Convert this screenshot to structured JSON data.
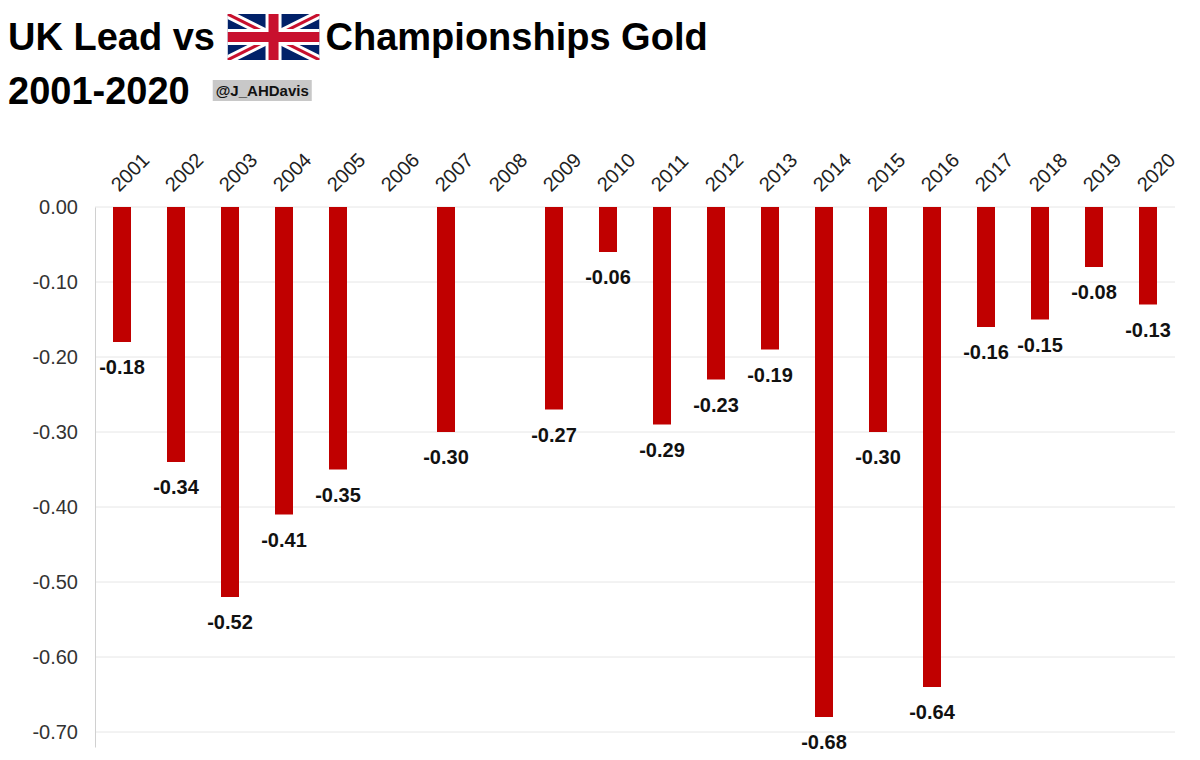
{
  "chart_data": {
    "type": "bar",
    "title": "UK Lead vs Championships Gold",
    "subtitle": "2001-2020",
    "annotation": "@J_AHDavis",
    "categories": [
      "2001",
      "2002",
      "2003",
      "2004",
      "2005",
      "2006",
      "2007",
      "2008",
      "2009",
      "2010",
      "2011",
      "2012",
      "2013",
      "2014",
      "2015",
      "2016",
      "2017",
      "2018",
      "2019",
      "2020"
    ],
    "values": [
      -0.18,
      -0.34,
      -0.52,
      -0.41,
      -0.35,
      null,
      -0.3,
      null,
      -0.27,
      -0.06,
      -0.29,
      -0.23,
      -0.19,
      -0.68,
      -0.3,
      -0.64,
      -0.16,
      -0.15,
      -0.08,
      -0.13
    ],
    "value_labels": [
      "-0.18",
      "-0.34",
      "-0.52",
      "-0.41",
      "-0.35",
      null,
      "-0.30",
      null,
      "-0.27",
      "-0.06",
      "-0.29",
      "-0.23",
      "-0.19",
      "-0.68",
      "-0.30",
      "-0.64",
      "-0.16",
      "-0.15",
      "-0.08",
      "-0.13"
    ],
    "color": "#c00000",
    "ylim": [
      -0.72,
      0
    ],
    "yticks": [
      {
        "value": 0,
        "label": "0.00"
      },
      {
        "value": -0.1,
        "label": "-0.10"
      },
      {
        "value": -0.2,
        "label": "-0.20"
      },
      {
        "value": -0.3,
        "label": "-0.30"
      },
      {
        "value": -0.4,
        "label": "-0.40"
      },
      {
        "value": -0.5,
        "label": "-0.50"
      },
      {
        "value": -0.6,
        "label": "-0.60"
      },
      {
        "value": -0.7,
        "label": "-0.70"
      }
    ],
    "grid": true,
    "data_labels": true
  }
}
